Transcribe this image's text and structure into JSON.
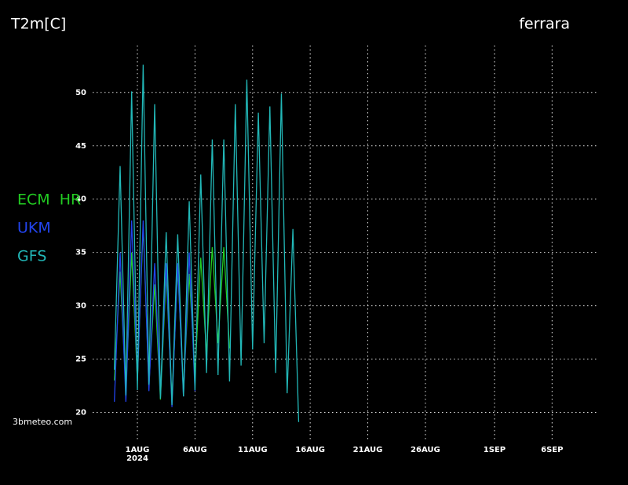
{
  "chart_data": {
    "type": "line",
    "title": "T2m[C]",
    "location": "ferrara",
    "source": "3bmeteo.com",
    "x": [
      "2024-07-30T00:00",
      "2024-07-30T12:00",
      "2024-07-31T00:00",
      "2024-07-31T12:00",
      "2024-08-01T00:00",
      "2024-08-01T12:00",
      "2024-08-02T00:00",
      "2024-08-02T12:00",
      "2024-08-03T00:00",
      "2024-08-03T12:00",
      "2024-08-04T00:00",
      "2024-08-04T12:00",
      "2024-08-05T00:00",
      "2024-08-05T12:00",
      "2024-08-06T00:00",
      "2024-08-06T12:00",
      "2024-08-07T00:00",
      "2024-08-07T12:00",
      "2024-08-08T00:00",
      "2024-08-08T12:00",
      "2024-08-09T00:00",
      "2024-08-09T12:00",
      "2024-08-10T00:00",
      "2024-08-10T12:00",
      "2024-08-11T00:00",
      "2024-08-11T12:00",
      "2024-08-12T00:00",
      "2024-08-12T12:00",
      "2024-08-13T00:00",
      "2024-08-13T12:00",
      "2024-08-14T00:00",
      "2024-08-14T12:00",
      "2024-08-15T00:00"
    ],
    "series": [
      {
        "name": "ECM  HR",
        "color": "#22cc22",
        "values": [
          23,
          33.2,
          22,
          35,
          23,
          37.5,
          22.5,
          32,
          21.2,
          33,
          21,
          33.5,
          22,
          33,
          23.5,
          34.5,
          25.5,
          35.5,
          26.5,
          35.5,
          26,
          null,
          null,
          null,
          null,
          null,
          null,
          null,
          null,
          null,
          null,
          null,
          null
        ]
      },
      {
        "name": "UKM",
        "color": "#2244ee",
        "values": [
          21,
          35,
          21,
          38,
          23,
          38,
          22,
          34,
          21.5,
          34,
          20.5,
          34,
          21.5,
          35,
          22,
          null,
          null,
          null,
          null,
          null,
          null,
          null,
          null,
          null,
          null,
          null,
          null,
          null,
          null,
          null,
          null,
          null,
          null
        ]
      },
      {
        "name": "GFS",
        "color": "#22b8b8",
        "values": [
          24,
          43.1,
          21.6,
          50.1,
          22.1,
          52.6,
          22.6,
          48.9,
          21.3,
          36.9,
          20.7,
          36.7,
          21.5,
          39.8,
          22.1,
          42.3,
          23.7,
          45.6,
          23.5,
          45.6,
          22.9,
          48.9,
          24.4,
          51.2,
          25.9,
          48.1,
          26.5,
          48.7,
          23.7,
          49.9,
          21.8,
          37.2,
          19.1
        ]
      }
    ],
    "xlim": [
      "2024-07-28T06:00",
      "2024-09-10T00:00"
    ],
    "xticks": [
      {
        "value": "2024-08-01T00:00",
        "label": "1AUG"
      },
      {
        "value": "2024-08-06T00:00",
        "label": "6AUG"
      },
      {
        "value": "2024-08-11T00:00",
        "label": "11AUG"
      },
      {
        "value": "2024-08-16T00:00",
        "label": "16AUG"
      },
      {
        "value": "2024-08-21T00:00",
        "label": "21AUG"
      },
      {
        "value": "2024-08-26T00:00",
        "label": "26AUG"
      },
      {
        "value": "2024-09-01T00:00",
        "label": "1SEP"
      },
      {
        "value": "2024-09-06T00:00",
        "label": "6SEP"
      }
    ],
    "xtick_year": "2024",
    "ylim": [
      18.2,
      54.4
    ],
    "yticks": [
      20,
      25,
      30,
      35,
      40,
      45,
      50
    ],
    "grid": true
  }
}
